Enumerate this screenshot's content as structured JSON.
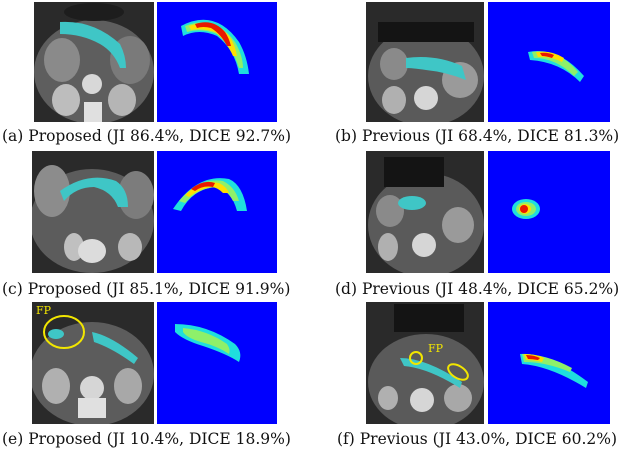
{
  "figure": {
    "panels": [
      {
        "id": "a",
        "caption": "(a) Proposed (JI 86.4%, DICE 92.7%)",
        "fp_label": ""
      },
      {
        "id": "b",
        "caption": "(b) Previous (JI 68.4%, DICE 81.3%)",
        "fp_label": ""
      },
      {
        "id": "c",
        "caption": "(c) Proposed (JI 85.1%, DICE 91.9%)",
        "fp_label": ""
      },
      {
        "id": "d",
        "caption": "(d) Previous (JI 48.4%, DICE 65.2%)",
        "fp_label": ""
      },
      {
        "id": "e",
        "caption": "(e) Proposed (JI 10.4%, DICE 18.9%)",
        "fp_label": "FP"
      },
      {
        "id": "f",
        "caption": "(f) Previous (JI 43.0%, DICE 60.2%)",
        "fp_label": "FP"
      }
    ],
    "colors": {
      "segmentation_overlay": "#3fc6c6",
      "heatmap_background": "#0000ff",
      "fp_annotation": "#f2e600"
    }
  }
}
